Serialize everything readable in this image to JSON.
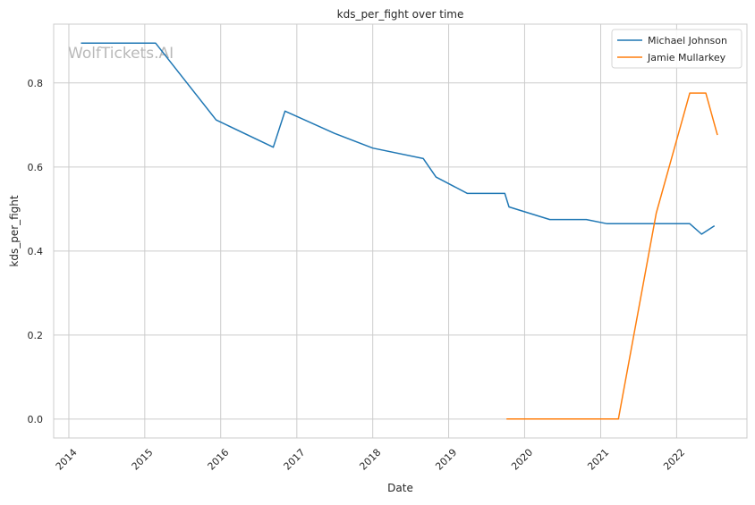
{
  "chart_data": {
    "type": "line",
    "title": "kds_per_fight over time",
    "xlabel": "Date",
    "ylabel": "kds_per_fight",
    "x_ticks": [
      "2014",
      "2015",
      "2016",
      "2017",
      "2018",
      "2019",
      "2020",
      "2021",
      "2022"
    ],
    "y_ticks": [
      "0.0",
      "0.2",
      "0.4",
      "0.6",
      "0.8"
    ],
    "xlim": [
      "2013-10-20",
      "2022-12-05"
    ],
    "ylim": [
      -0.045,
      0.94
    ],
    "grid": true,
    "legend_position": "top-right",
    "watermark": "WolfTickets.AI",
    "series": [
      {
        "name": "Michael Johnson",
        "color": "#1f77b4",
        "points": [
          [
            "2014-02-28",
            0.895
          ],
          [
            "2015-02-22",
            0.895
          ],
          [
            "2015-12-10",
            0.712
          ],
          [
            "2016-09-10",
            0.647
          ],
          [
            "2016-11-05",
            0.733
          ],
          [
            "2017-07-01",
            0.68
          ],
          [
            "2018-01-01",
            0.645
          ],
          [
            "2018-09-01",
            0.62
          ],
          [
            "2018-11-01",
            0.576
          ],
          [
            "2019-04-01",
            0.537
          ],
          [
            "2019-09-28",
            0.537
          ],
          [
            "2019-10-18",
            0.505
          ],
          [
            "2020-05-01",
            0.475
          ],
          [
            "2020-10-24",
            0.475
          ],
          [
            "2021-02-01",
            0.465
          ],
          [
            "2022-03-05",
            0.465
          ],
          [
            "2022-05-01",
            0.44
          ],
          [
            "2022-07-02",
            0.46
          ]
        ]
      },
      {
        "name": "Jamie Mullarkey",
        "color": "#ff7f0e",
        "points": [
          [
            "2019-10-06",
            0.0
          ],
          [
            "2021-03-27",
            0.0
          ],
          [
            "2021-09-25",
            0.49
          ],
          [
            "2022-03-05",
            0.776
          ],
          [
            "2022-05-21",
            0.776
          ],
          [
            "2022-07-16",
            0.676
          ]
        ]
      }
    ]
  }
}
